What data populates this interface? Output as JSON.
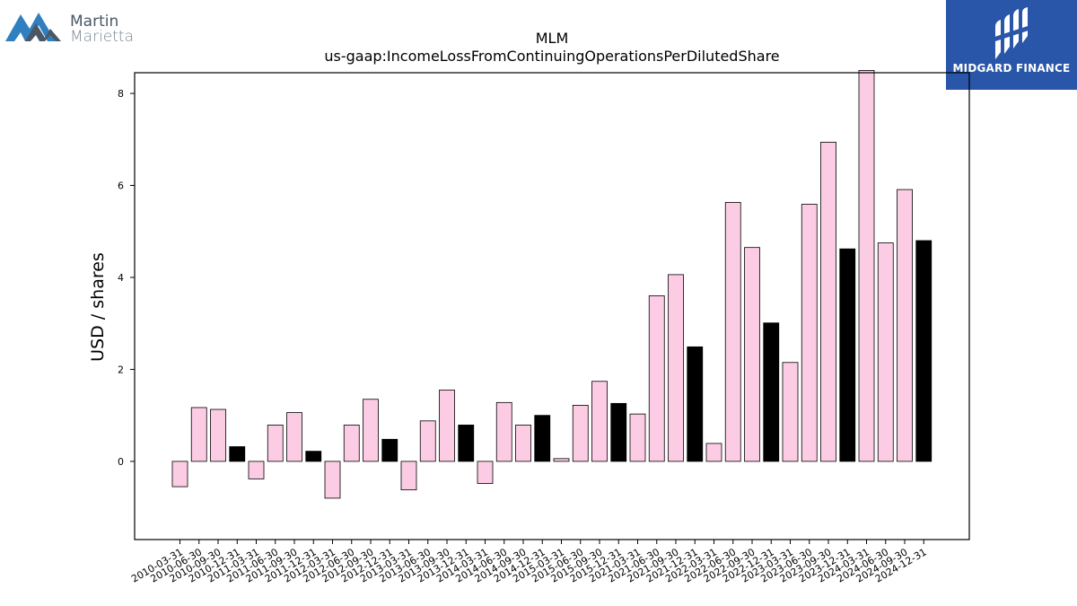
{
  "logos": {
    "left": {
      "name_line1": "Martin",
      "name_line2": "Marietta"
    },
    "right": {
      "name": "MIDGARD FINANCE"
    }
  },
  "chart_data": {
    "type": "bar",
    "title": "MLM",
    "subtitle": "us-gaap:IncomeLossFromContinuingOperationsPerDilutedShare",
    "xlabel": "",
    "ylabel": "USD / shares",
    "ylim": [
      -1.7,
      8.45
    ],
    "yticks": [
      0,
      2,
      4,
      6,
      8
    ],
    "grid": false,
    "colors": {
      "quarter": "#fccce4",
      "year_end": "#000000",
      "edge": "#000000"
    },
    "categories": [
      "2010-03-31",
      "2010-06-30",
      "2010-09-30",
      "2010-12-31",
      "2011-03-31",
      "2011-06-30",
      "2011-09-30",
      "2011-12-31",
      "2012-03-31",
      "2012-06-30",
      "2012-09-30",
      "2012-12-31",
      "2013-03-31",
      "2013-06-30",
      "2013-09-30",
      "2013-12-31",
      "2014-03-31",
      "2014-06-30",
      "2014-09-30",
      "2014-12-31",
      "2015-03-31",
      "2015-06-30",
      "2015-09-30",
      "2015-12-31",
      "2021-03-31",
      "2021-06-30",
      "2021-09-30",
      "2021-12-31",
      "2022-03-31",
      "2022-06-30",
      "2022-09-30",
      "2022-12-31",
      "2023-03-31",
      "2023-06-30",
      "2023-09-30",
      "2023-12-31",
      "2024-03-31",
      "2024-06-30",
      "2024-09-30",
      "2024-12-31"
    ],
    "values": [
      -0.55,
      1.17,
      1.13,
      0.32,
      -0.38,
      0.79,
      1.06,
      0.22,
      -0.8,
      0.79,
      1.35,
      0.48,
      -0.62,
      0.88,
      1.55,
      0.79,
      -0.48,
      1.28,
      0.79,
      1.0,
      0.06,
      1.22,
      1.74,
      1.26,
      1.03,
      3.6,
      4.06,
      2.49,
      0.39,
      5.63,
      4.65,
      3.01,
      2.15,
      5.59,
      6.94,
      4.62,
      8.5,
      4.75,
      5.91,
      4.8
    ],
    "year_end": [
      false,
      false,
      false,
      true,
      false,
      false,
      false,
      true,
      false,
      false,
      false,
      true,
      false,
      false,
      false,
      true,
      false,
      false,
      false,
      true,
      false,
      false,
      false,
      true,
      false,
      false,
      false,
      true,
      false,
      false,
      false,
      true,
      false,
      false,
      false,
      true,
      false,
      false,
      false,
      true
    ]
  }
}
